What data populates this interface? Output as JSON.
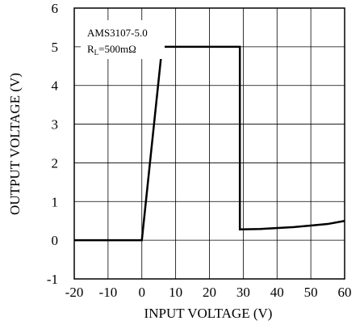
{
  "chart_data": {
    "type": "line",
    "title": "",
    "xlabel": "INPUT VOLTAGE (V)",
    "ylabel": "OUTPUT VOLTAGE (V)",
    "xlim": [
      -20,
      60
    ],
    "ylim": [
      -1,
      6
    ],
    "xticks": [
      -20,
      -10,
      0,
      10,
      20,
      30,
      40,
      50,
      60
    ],
    "yticks": [
      -1,
      0,
      1,
      2,
      3,
      4,
      5,
      6
    ],
    "grid": true,
    "legend": "none",
    "annotation": {
      "line1": "AMS3107-5.0",
      "line2_main": "R",
      "line2_sub": "L",
      "line2_rest": "=500mΩ"
    },
    "series": [
      {
        "x": [
          -20,
          0,
          6,
          29,
          29,
          35,
          45,
          55,
          60
        ],
        "y": [
          0,
          0,
          5,
          5,
          0.28,
          0.29,
          0.34,
          0.42,
          0.5
        ],
        "color": "#000000"
      }
    ]
  }
}
